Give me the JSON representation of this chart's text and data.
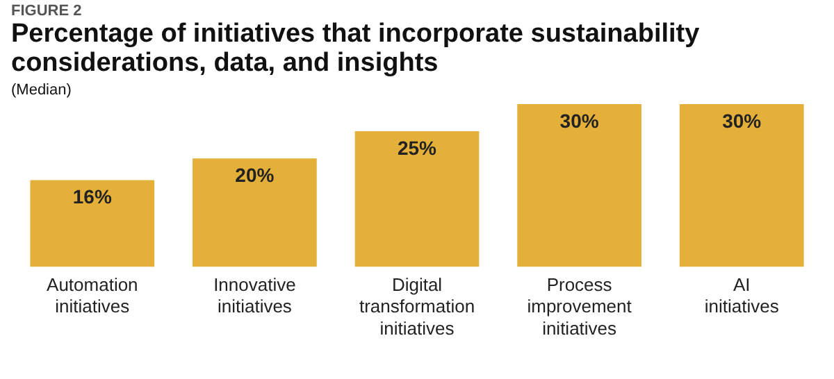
{
  "chart_data": {
    "type": "bar",
    "title": "Percentage of initiatives that incorporate sustainability considerations, data, and insights",
    "subtitle": "(Median)",
    "annotations": [
      "FIGURE 2"
    ],
    "categories": [
      "Automation\ninitiatives",
      "Innovative\ninitiatives",
      "Digital\ntransformation\ninitiatives",
      "Process\nimprovement\ninitiatives",
      "AI\ninitiatives"
    ],
    "values": [
      16,
      20,
      25,
      30,
      30
    ],
    "value_labels": [
      "16%",
      "20%",
      "25%",
      "30%",
      "30%"
    ],
    "color": "#e5b03a",
    "grid": false,
    "legend": false
  }
}
